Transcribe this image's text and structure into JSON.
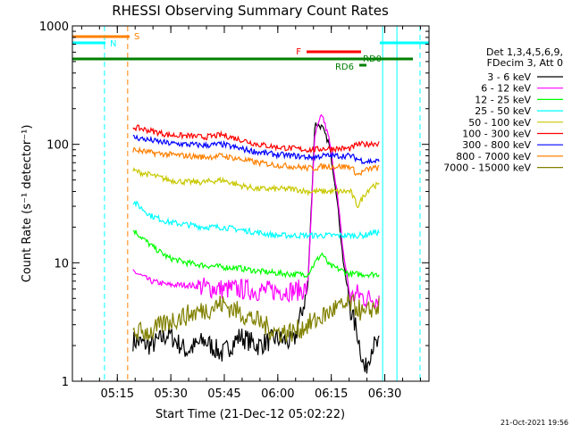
{
  "chart_data": {
    "type": "line",
    "title": "RHESSI Observing Summary Count Rates",
    "xlabel": "Start Time (21-Dec-12 05:02:22)",
    "ylabel": "Count Rate (s⁻¹ detector⁻¹)",
    "y_scale": "log",
    "ylim": [
      1,
      1000
    ],
    "xlim_minutes": [
      0,
      100
    ],
    "x_ticks": [
      {
        "label": "05:15",
        "minute": 12.6
      },
      {
        "label": "05:30",
        "minute": 27.6
      },
      {
        "label": "05:45",
        "minute": 42.6
      },
      {
        "label": "06:00",
        "minute": 57.6
      },
      {
        "label": "06:15",
        "minute": 72.6
      },
      {
        "label": "06:30",
        "minute": 87.6
      }
    ],
    "y_ticks": [
      {
        "label": "1",
        "value": 1
      },
      {
        "label": "10",
        "value": 10
      },
      {
        "label": "100",
        "value": 100
      },
      {
        "label": "1000",
        "value": 1000
      }
    ],
    "legend_header": [
      "Det 1,3,4,5,6,9,",
      "FDecim 3, Att 0"
    ],
    "legend_position": "right",
    "series": [
      {
        "name": "3 - 6 keV",
        "color": "#000000",
        "x": [
          17,
          22,
          27,
          32,
          37,
          42,
          47,
          52,
          57,
          62,
          66,
          68,
          70,
          72,
          74,
          76,
          78,
          80,
          82,
          84,
          86
        ],
        "y": [
          2.2,
          2.0,
          2.5,
          1.8,
          2.2,
          1.7,
          2.4,
          2.0,
          2.3,
          2.1,
          6,
          150,
          140,
          100,
          40,
          10,
          4,
          2.5,
          1.2,
          2.0,
          2.0
        ]
      },
      {
        "name": "6 - 12 keV",
        "color": "#ff00ff",
        "x": [
          17,
          22,
          27,
          32,
          37,
          42,
          47,
          52,
          57,
          62,
          66,
          68,
          70,
          72,
          74,
          76,
          78,
          80,
          82,
          84,
          86
        ],
        "y": [
          8.5,
          7.0,
          6.5,
          6.5,
          6.2,
          6.0,
          6.0,
          5.8,
          5.8,
          5.8,
          6,
          120,
          180,
          110,
          45,
          12,
          5,
          5.5,
          5.0,
          5.0,
          5.0
        ]
      },
      {
        "name": "12 - 25 keV",
        "color": "#00ff00",
        "x": [
          17,
          22,
          27,
          32,
          37,
          42,
          47,
          52,
          57,
          62,
          66,
          68,
          70,
          72,
          74,
          76,
          78,
          80,
          82,
          84,
          86
        ],
        "y": [
          19,
          14,
          11,
          10,
          9.5,
          9.2,
          9.0,
          8.5,
          8.2,
          8.0,
          8.0,
          10,
          12,
          9.5,
          9.0,
          8.5,
          8.0,
          8.0,
          8.0,
          8.0,
          8.0
        ]
      },
      {
        "name": "25 - 50 keV",
        "color": "#00ffff",
        "x": [
          17,
          22,
          27,
          32,
          37,
          42,
          47,
          52,
          57,
          62,
          66,
          68,
          70,
          72,
          74,
          76,
          78,
          80,
          82,
          84,
          86
        ],
        "y": [
          33,
          25,
          22,
          21,
          20,
          20,
          19,
          18,
          17,
          17,
          17,
          17,
          17,
          17,
          17,
          17,
          17,
          17,
          17,
          18,
          18
        ]
      },
      {
        "name": "50 - 100 keV",
        "color": "#c8c800",
        "x": [
          17,
          22,
          27,
          32,
          37,
          42,
          47,
          52,
          57,
          62,
          66,
          68,
          70,
          72,
          74,
          76,
          78,
          80,
          82,
          84,
          86
        ],
        "y": [
          60,
          55,
          50,
          48,
          48,
          50,
          45,
          42,
          42,
          42,
          40,
          40,
          40,
          40,
          40,
          40,
          40,
          30,
          38,
          45,
          45
        ]
      },
      {
        "name": "100 - 300 keV",
        "color": "#ff0000",
        "x": [
          17,
          22,
          27,
          32,
          37,
          42,
          47,
          52,
          57,
          62,
          66,
          68,
          70,
          72,
          74,
          76,
          78,
          80,
          82,
          84,
          86
        ],
        "y": [
          140,
          130,
          120,
          118,
          115,
          120,
          110,
          100,
          95,
          92,
          90,
          90,
          92,
          92,
          92,
          92,
          92,
          100,
          100,
          102,
          102
        ]
      },
      {
        "name": "300 - 800 keV",
        "color": "#0000ff",
        "x": [
          17,
          22,
          27,
          32,
          37,
          42,
          47,
          52,
          57,
          62,
          66,
          68,
          70,
          72,
          74,
          76,
          78,
          80,
          82,
          84,
          86
        ],
        "y": [
          115,
          108,
          102,
          100,
          98,
          100,
          92,
          86,
          82,
          80,
          78,
          78,
          80,
          80,
          80,
          80,
          80,
          75,
          72,
          72,
          72
        ]
      },
      {
        "name": "800 - 7000 keV",
        "color": "#ff8000",
        "x": [
          17,
          22,
          27,
          32,
          37,
          42,
          47,
          52,
          57,
          62,
          66,
          68,
          70,
          72,
          74,
          76,
          78,
          80,
          82,
          84,
          86
        ],
        "y": [
          90,
          85,
          82,
          80,
          78,
          80,
          75,
          70,
          67,
          65,
          63,
          63,
          65,
          65,
          65,
          65,
          65,
          55,
          60,
          63,
          63
        ]
      },
      {
        "name": "7000 - 15000 keV",
        "color": "#808000",
        "x": [
          17,
          22,
          27,
          32,
          37,
          42,
          47,
          52,
          57,
          62,
          66,
          68,
          70,
          72,
          74,
          76,
          78,
          80,
          82,
          84,
          86
        ],
        "y": [
          2.6,
          2.6,
          3.2,
          3.6,
          4.0,
          4.5,
          3.8,
          3.2,
          2.6,
          2.6,
          3.0,
          3.2,
          3.5,
          3.8,
          4.2,
          4.2,
          4.5,
          4.2,
          3.5,
          4.2,
          4.2
        ]
      }
    ],
    "annotations": [
      {
        "label": "S",
        "color": "#ff8000"
      },
      {
        "label": "N",
        "color": "#00ffff"
      },
      {
        "label": "F",
        "color": "#ff0000"
      },
      {
        "label": "RD0",
        "color": "#008000"
      },
      {
        "label": "RD6",
        "color": "#008000"
      }
    ],
    "vlines_minutes": [
      {
        "minute": 9.0,
        "color": "#00ffff",
        "style": "dashed"
      },
      {
        "minute": 15.5,
        "color": "#ff8000",
        "style": "dashed"
      },
      {
        "minute": 87.0,
        "color": "#00ffff",
        "style": "solid"
      },
      {
        "minute": 91.0,
        "color": "#00ffff",
        "style": "solid"
      },
      {
        "minute": 97.5,
        "color": "#00ffff",
        "style": "dashed"
      }
    ],
    "timestamp": "21-Oct-2021 19:56"
  }
}
